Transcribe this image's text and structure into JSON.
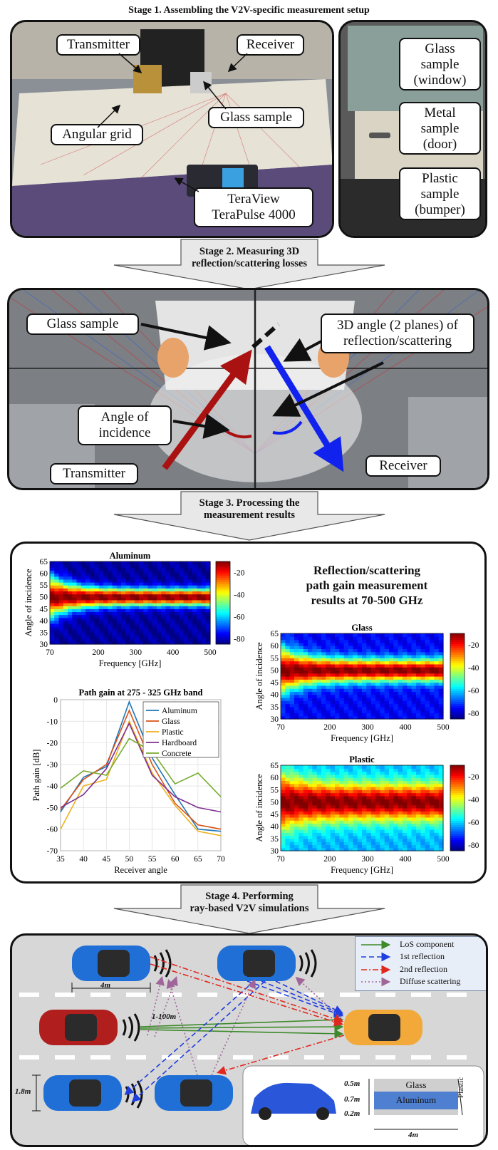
{
  "stage1": {
    "title": "Stage 1. Assembling the V2V-specific measurement setup",
    "labels": {
      "transmitter": "Transmitter",
      "receiver": "Receiver",
      "glass_sample": "Glass sample",
      "angular_grid": "Angular grid",
      "teraview_l1": "TeraView",
      "teraview_l2": "TeraPulse 4000",
      "glass_window_l1": "Glass",
      "glass_window_l2": "sample",
      "glass_window_l3": "(window)",
      "metal_door_l1": "Metal",
      "metal_door_l2": "sample",
      "metal_door_l3": "(door)",
      "plastic_bumper_l1": "Plastic",
      "plastic_bumper_l2": "sample",
      "plastic_bumper_l3": "(bumper)"
    }
  },
  "stage2": {
    "title_l1": "Stage 2. Measuring 3D",
    "title_l2": "reflection/scattering losses",
    "labels": {
      "glass_sample": "Glass sample",
      "angle_3d_l1": "3D angle (2 planes) of",
      "angle_3d_l2": "reflection/scattering",
      "incidence_l1": "Angle of",
      "incidence_l2": "incidence",
      "transmitter": "Transmitter",
      "receiver": "Receiver"
    }
  },
  "stage3": {
    "title_l1": "Stage 3. Processing the",
    "title_l2": "measurement results",
    "heading_l1": "Reflection/scattering",
    "heading_l2": "path gain measurement",
    "heading_l3": "results at 70-500 GHz"
  },
  "stage4": {
    "title_l1": "Stage 4. Performing",
    "title_l2": "ray-based V2V simulations",
    "legend": {
      "los": "LoS component",
      "first": "1st reflection",
      "second": "2nd reflection",
      "diffuse": "Diffuse scattering"
    },
    "dims": {
      "car_length": "4m",
      "distance": "1-100m",
      "height": "1.8m",
      "glass_h": "0.5m",
      "alu_h": "0.7m",
      "bottom_h": "0.2m",
      "len": "4m"
    },
    "materials": {
      "glass": "Glass",
      "aluminum": "Aluminum",
      "plastic": "Plastic"
    }
  },
  "chart_data": [
    {
      "type": "heatmap",
      "title": "Aluminum",
      "xlabel": "Frequency [GHz]",
      "ylabel": "Angle of incidence",
      "xlim": [
        70,
        500
      ],
      "ylim": [
        30,
        65
      ],
      "xticks": [
        "70",
        "200",
        "300",
        "400",
        "500"
      ],
      "yticks": [
        "30",
        "35",
        "40",
        "45",
        "50",
        "55",
        "60",
        "65"
      ],
      "colorbar_ticks": [
        "-20",
        "-40",
        "-60",
        "-80"
      ],
      "colorbar_range": [
        -85,
        -10
      ]
    },
    {
      "type": "heatmap",
      "title": "Glass",
      "xlabel": "Frequency [GHz]",
      "ylabel": "Angle of incidence",
      "xlim": [
        70,
        500
      ],
      "ylim": [
        30,
        65
      ],
      "xticks": [
        "70",
        "200",
        "300",
        "400",
        "500"
      ],
      "yticks": [
        "30",
        "35",
        "40",
        "45",
        "50",
        "55",
        "60",
        "65"
      ],
      "colorbar_ticks": [
        "-20",
        "-40",
        "-60",
        "-80"
      ],
      "colorbar_range": [
        -85,
        -10
      ]
    },
    {
      "type": "heatmap",
      "title": "Plastic",
      "xlabel": "Frequency [GHz]",
      "ylabel": "Angle of incidence",
      "xlim": [
        70,
        500
      ],
      "ylim": [
        30,
        65
      ],
      "xticks": [
        "70",
        "200",
        "300",
        "400",
        "500"
      ],
      "yticks": [
        "30",
        "35",
        "40",
        "45",
        "50",
        "55",
        "60",
        "65"
      ],
      "colorbar_ticks": [
        "-20",
        "-40",
        "-60",
        "-80"
      ],
      "colorbar_range": [
        -85,
        -10
      ]
    },
    {
      "type": "line",
      "title": "Path gain at 275 - 325 GHz band",
      "xlabel": "Receiver angle",
      "ylabel": "Path gain [dB]",
      "xlim": [
        35,
        70
      ],
      "ylim": [
        -70,
        0
      ],
      "xticks": [
        "35",
        "40",
        "45",
        "50",
        "55",
        "60",
        "65",
        "70"
      ],
      "yticks": [
        "0",
        "-10",
        "-20",
        "-30",
        "-40",
        "-50",
        "-60",
        "-70"
      ],
      "legend": "top-right",
      "grid": true,
      "x": [
        35,
        40,
        45,
        50,
        55,
        60,
        65,
        70
      ],
      "series": [
        {
          "name": "Aluminum",
          "color": "#1f77b4",
          "values": [
            -52,
            -36,
            -31,
            -1,
            -27,
            -44,
            -60,
            -61
          ]
        },
        {
          "name": "Glass",
          "color": "#d95319",
          "values": [
            -51,
            -37,
            -30,
            -5,
            -30,
            -48,
            -58,
            -60
          ]
        },
        {
          "name": "Plastic",
          "color": "#edb120",
          "values": [
            -60,
            -40,
            -37,
            -10,
            -34,
            -49,
            -61,
            -63
          ]
        },
        {
          "name": "Hardboard",
          "color": "#7e2f8e",
          "values": [
            -50,
            -44,
            -32,
            -11,
            -35,
            -45,
            -50,
            -52
          ]
        },
        {
          "name": "Concrete",
          "color": "#77ac30",
          "values": [
            -41,
            -33,
            -35,
            -18,
            -24,
            -39,
            -34,
            -45
          ]
        }
      ]
    }
  ]
}
